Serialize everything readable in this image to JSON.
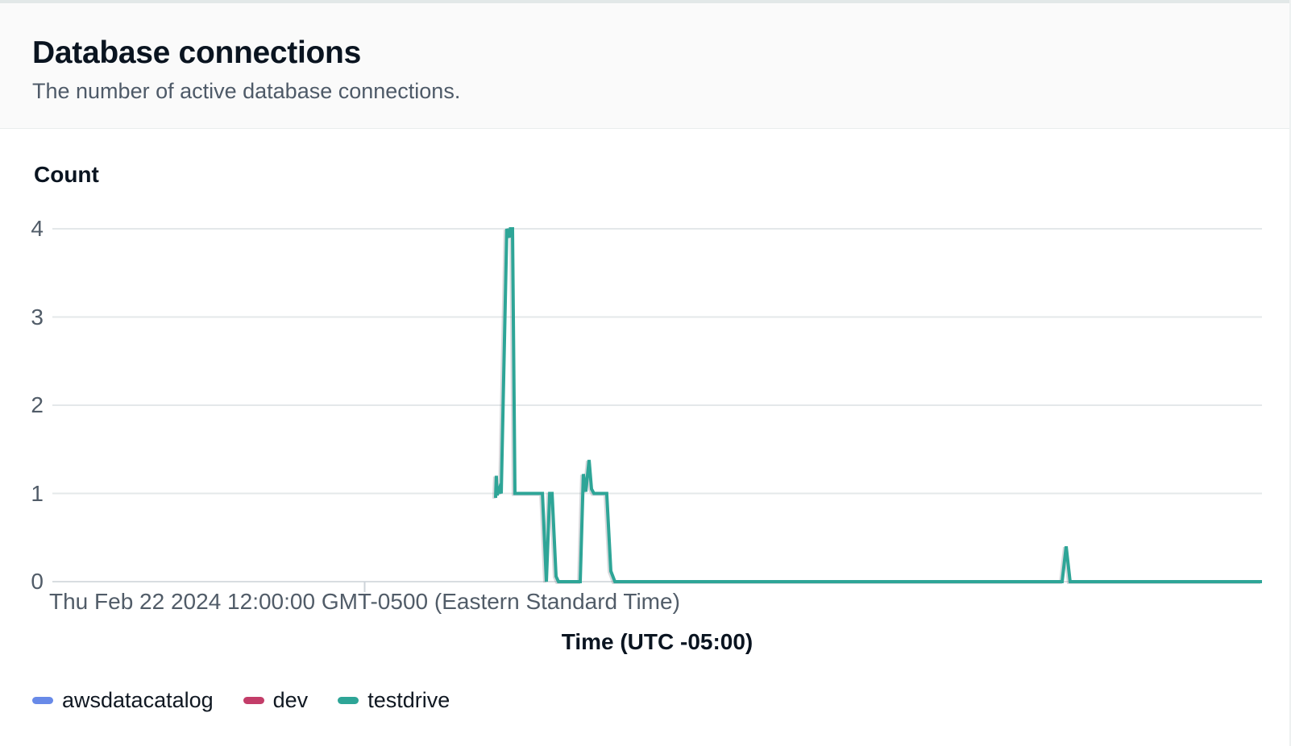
{
  "chart_data": {
    "type": "line",
    "title": "Database connections",
    "subtitle": "The number of active database connections.",
    "ylabel": "Count",
    "xlabel": "Time (UTC -05:00)",
    "ylim": [
      0,
      4
    ],
    "y_ticks": [
      0,
      1,
      2,
      3,
      4
    ],
    "grid": "horizontal",
    "legend_position": "bottom-left",
    "x_axis": {
      "tick_label": "Thu Feb 22 2024 12:00:00 GMT-0500 (Eastern Standard Time)",
      "tick_position_fraction": 0.258
    },
    "series": [
      {
        "name": "awsdatacatalog",
        "color": "#688ae8",
        "points_fraction_count": []
      },
      {
        "name": "dev",
        "color": "#c33d69",
        "points_fraction_count": []
      },
      {
        "name": "testdrive",
        "color": "#2ea597",
        "points_fraction_count": [
          [
            0.3664,
            0.95
          ],
          [
            0.367,
            1.2
          ],
          [
            0.3677,
            0.98
          ],
          [
            0.3697,
            1.06
          ],
          [
            0.3711,
            1.0
          ],
          [
            0.3757,
            4.0
          ],
          [
            0.3777,
            3.9
          ],
          [
            0.3786,
            4.0
          ],
          [
            0.3804,
            4.0
          ],
          [
            0.3824,
            1.0
          ],
          [
            0.4051,
            1.0
          ],
          [
            0.4084,
            0.0
          ],
          [
            0.4111,
            1.0
          ],
          [
            0.4131,
            1.0
          ],
          [
            0.4164,
            0.06
          ],
          [
            0.4184,
            0.0
          ],
          [
            0.4364,
            0.0
          ],
          [
            0.439,
            1.22
          ],
          [
            0.441,
            1.02
          ],
          [
            0.4437,
            1.38
          ],
          [
            0.4457,
            1.05
          ],
          [
            0.4477,
            1.0
          ],
          [
            0.4583,
            1.0
          ],
          [
            0.4617,
            0.12
          ],
          [
            0.465,
            0.0
          ],
          [
            0.8348,
            0.0
          ],
          [
            0.8381,
            0.4
          ],
          [
            0.8414,
            0.0
          ],
          [
            1.0,
            0.0
          ]
        ]
      }
    ]
  },
  "colors": {
    "series_blue": "#688ae8",
    "series_crimson": "#c33d69",
    "series_teal": "#2ea597",
    "gridline": "#e4e8ea",
    "zero_axis": "#d8dde1",
    "tick_mark": "#cdd3d9",
    "text_dark": "#0a1420",
    "text_muted": "#515c68"
  }
}
